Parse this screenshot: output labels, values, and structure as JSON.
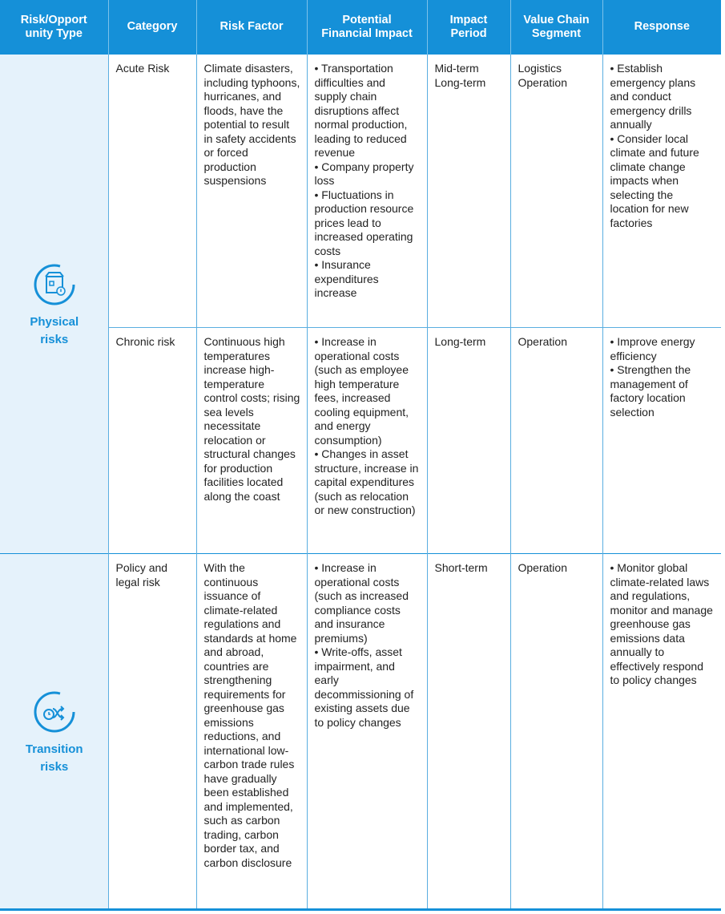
{
  "table": {
    "header": [
      [
        "Risk/Opport",
        "unity Type"
      ],
      [
        "Category"
      ],
      [
        "Risk Factor"
      ],
      [
        "Potential",
        "Financial Impact"
      ],
      [
        "Impact",
        "Period"
      ],
      [
        "Value Chain",
        "Segment"
      ],
      [
        "Response"
      ]
    ],
    "groups": [
      {
        "type": [
          "Physical",
          "risks"
        ],
        "rows": [
          {
            "category": [
              "Acute Risk"
            ],
            "risk_factor": "Climate disasters, including typhoons, hurricanes, and floods, have the potential to result in safety accidents or forced production suspensions",
            "financial_impact": [
              "• Transportation difficulties and supply chain disruptions affect normal production, leading to reduced revenue",
              "• Company property loss",
              "• Fluctuations in production resource prices lead to increased operating costs",
              "• Insurance expenditures increase"
            ],
            "impact_period": [
              "Mid-term",
              "Long-term"
            ],
            "value_chain_segment": [
              "Logistics",
              "Operation"
            ],
            "response": [
              "• Establish emergency plans and conduct emergency drills annually",
              "• Consider local climate and future climate change impacts when selecting the location for new factories"
            ]
          },
          {
            "category": [
              "Chronic risk"
            ],
            "risk_factor": "Continuous high temperatures increase high-temperature control costs; rising sea levels necessitate relocation or structural changes for production facilities located along the coast",
            "financial_impact": [
              "• Increase in operational costs (such as employee high temperature fees, increased cooling equipment, and energy consumption)",
              "• Changes in asset structure, increase in capital expenditures (such as relocation or new construction)"
            ],
            "impact_period": [
              "Long-term"
            ],
            "value_chain_segment": [
              "Operation"
            ],
            "response": [
              "• Improve energy efficiency",
              "• Strengthen the management of factory location selection"
            ]
          }
        ]
      },
      {
        "type": [
          "Transition",
          "risks"
        ],
        "rows": [
          {
            "category": [
              "Policy and",
              "legal risk"
            ],
            "risk_factor": "With the continuous issuance of climate-related regulations and standards at home and abroad, countries are strengthening requirements for greenhouse gas emissions reductions, and international low-carbon trade rules have gradually been established and implemented, such as carbon trading, carbon border tax, and carbon disclosure",
            "financial_impact": [
              "• Increase in operational costs (such as increased compliance costs and insurance premiums)",
              "• Write-offs, asset impairment, and early decommissioning of existing assets due to policy changes"
            ],
            "impact_period": [
              "Short-term"
            ],
            "value_chain_segment": [
              "Operation"
            ],
            "response": [
              "• Monitor global climate-related laws and regulations, monitor and manage greenhouse gas emissions data annually to effectively respond to policy changes"
            ]
          }
        ]
      }
    ]
  }
}
